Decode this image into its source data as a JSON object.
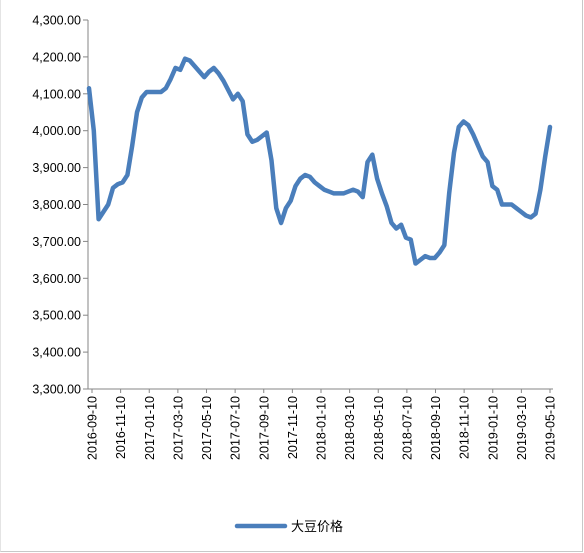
{
  "chart_data": {
    "type": "line",
    "title": "",
    "xlabel": "",
    "ylabel": "",
    "ylim": [
      3300,
      4300
    ],
    "y_ticks": [
      "3,300.00",
      "3,400.00",
      "3,500.00",
      "3,600.00",
      "3,700.00",
      "3,800.00",
      "3,900.00",
      "4,000.00",
      "4,100.00",
      "4,200.00",
      "4,300.00"
    ],
    "x_ticks": [
      "2016-09-10",
      "2016-11-10",
      "2017-01-10",
      "2017-03-10",
      "2017-05-10",
      "2017-07-10",
      "2017-09-10",
      "2017-11-10",
      "2018-01-10",
      "2018-03-10",
      "2018-05-10",
      "2018-07-10",
      "2018-09-10",
      "2018-11-10",
      "2019-01-10",
      "2019-03-10",
      "2019-05-10"
    ],
    "legend_position": "bottom",
    "grid": false,
    "series": [
      {
        "name": "大豆价格",
        "color": "#4a7ebb",
        "values": [
          4115,
          4000,
          3760,
          3780,
          3800,
          3845,
          3855,
          3860,
          3880,
          3960,
          4050,
          4090,
          4105,
          4105,
          4105,
          4105,
          4115,
          4140,
          4170,
          4165,
          4195,
          4190,
          4175,
          4160,
          4145,
          4160,
          4170,
          4155,
          4135,
          4110,
          4085,
          4100,
          4080,
          3990,
          3970,
          3975,
          3985,
          3995,
          3920,
          3790,
          3750,
          3790,
          3810,
          3850,
          3870,
          3880,
          3875,
          3860,
          3850,
          3840,
          3835,
          3830,
          3830,
          3830,
          3835,
          3840,
          3835,
          3820,
          3915,
          3935,
          3870,
          3830,
          3795,
          3750,
          3735,
          3745,
          3710,
          3705,
          3640,
          3650,
          3660,
          3655,
          3655,
          3670,
          3690,
          3830,
          3940,
          4010,
          4025,
          4015,
          3990,
          3960,
          3930,
          3915,
          3850,
          3840,
          3800,
          3800,
          3800,
          3790,
          3780,
          3770,
          3765,
          3775,
          3840,
          3930,
          4010
        ]
      }
    ]
  }
}
